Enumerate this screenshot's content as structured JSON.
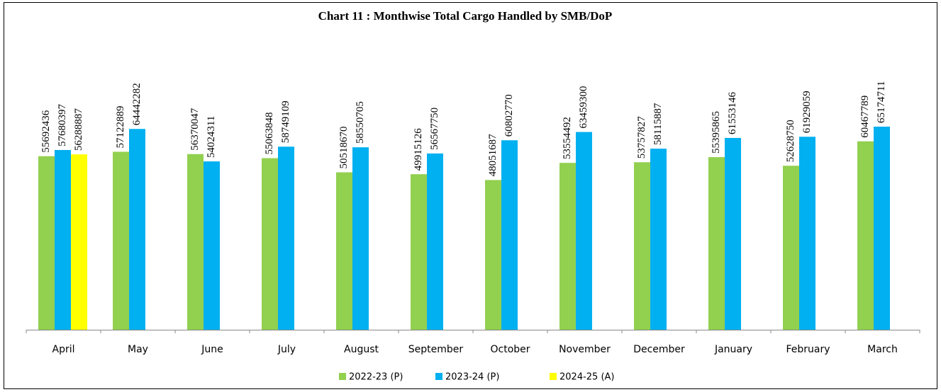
{
  "chart_data": {
    "type": "bar",
    "title": "Chart 11 : Monthwise Total Cargo Handled by SMB/DoP",
    "categories": [
      "April",
      "May",
      "June",
      "July",
      "August",
      "September",
      "October",
      "November",
      "December",
      "January",
      "February",
      "March"
    ],
    "series": [
      {
        "name": "2022-23 (P)",
        "color": "#92d050",
        "values": [
          55692436,
          57122889,
          56370047,
          55063848,
          50518670,
          49915126,
          48051687,
          53554492,
          53757827,
          55395865,
          52628750,
          60467789
        ]
      },
      {
        "name": "2023-24 (P)",
        "color": "#00b0f0",
        "values": [
          57680397,
          64442282,
          54024311,
          58749109,
          58550705,
          56567750,
          60802770,
          63459300,
          58115887,
          61553146,
          61929059,
          65174711
        ]
      },
      {
        "name": "2024-25 (A)",
        "color": "#ffff00",
        "values": [
          56288887,
          null,
          null,
          null,
          null,
          null,
          null,
          null,
          null,
          null,
          null,
          null
        ]
      }
    ],
    "legend": "bottom"
  }
}
